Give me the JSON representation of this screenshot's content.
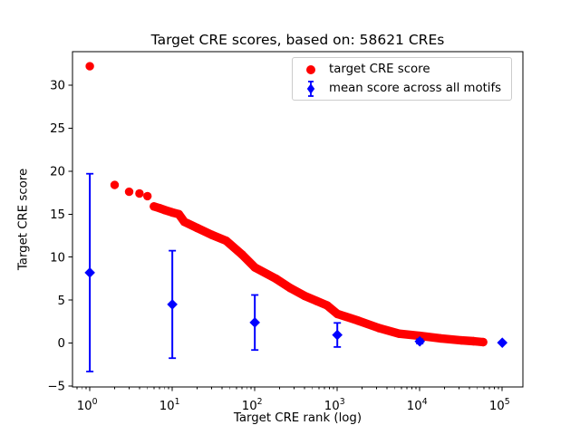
{
  "chart_data": {
    "type": "scatter",
    "title": "Target CRE scores, based on: 58621 CREs",
    "xlabel": "Target CRE rank (log)",
    "ylabel": "Target CRE score",
    "x_scale": "log",
    "grid": false,
    "legend_position": "upper right",
    "xlim_log10": [
      -0.21,
      5.25
    ],
    "ylim": [
      -5.1,
      33.9
    ],
    "x_ticks": [
      1,
      10,
      100,
      1000,
      10000,
      100000
    ],
    "y_ticks": [
      -5,
      0,
      5,
      10,
      15,
      20,
      25,
      30
    ],
    "series": [
      {
        "name": "target CRE score",
        "color": "#ff0000",
        "marker": "circle",
        "band_from_rank": 6,
        "points": [
          [
            1,
            32.2
          ],
          [
            2,
            18.4
          ],
          [
            3,
            17.6
          ],
          [
            4,
            17.4
          ],
          [
            5,
            17.1
          ],
          [
            6,
            15.9
          ],
          [
            7,
            15.7
          ],
          [
            8,
            15.5
          ],
          [
            10,
            15.2
          ],
          [
            12,
            15.0
          ],
          [
            14,
            14.1
          ],
          [
            20,
            13.4
          ],
          [
            30,
            12.6
          ],
          [
            45,
            11.9
          ],
          [
            70,
            10.3
          ],
          [
            100,
            8.8
          ],
          [
            180,
            7.5
          ],
          [
            270,
            6.4
          ],
          [
            400,
            5.5
          ],
          [
            560,
            4.9
          ],
          [
            750,
            4.4
          ],
          [
            1000,
            3.4
          ],
          [
            1800,
            2.6
          ],
          [
            3200,
            1.75
          ],
          [
            5600,
            1.1
          ],
          [
            10000,
            0.85
          ],
          [
            18000,
            0.55
          ],
          [
            32000,
            0.32
          ],
          [
            45000,
            0.22
          ],
          [
            58621,
            0.12
          ]
        ]
      },
      {
        "name": "mean score across all motifs",
        "color": "#0000ff",
        "marker": "diamond",
        "points_mean_err": [
          [
            1,
            8.2,
            11.5
          ],
          [
            10,
            4.5,
            6.25
          ],
          [
            100,
            2.4,
            3.2
          ],
          [
            1000,
            0.95,
            1.4
          ],
          [
            10000,
            0.2,
            0.25
          ],
          [
            100000,
            0.05,
            0.1
          ]
        ]
      }
    ],
    "n_cres": "58621"
  },
  "colors": {
    "background": "#ffffff",
    "text": "#000000",
    "axis": "#000000",
    "legend_border": "#cccccc"
  }
}
